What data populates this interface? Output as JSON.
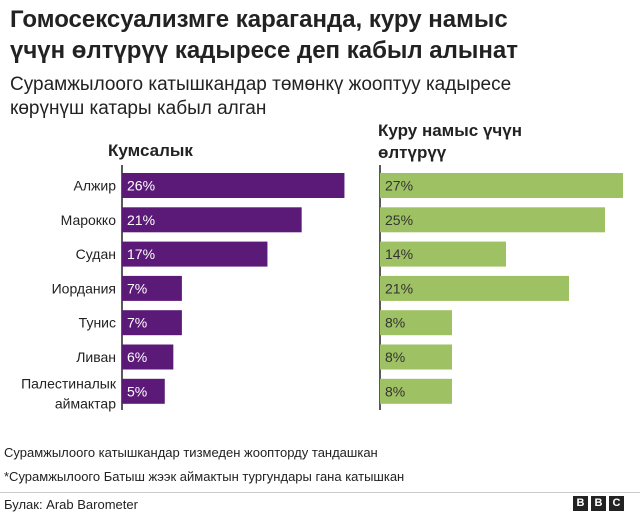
{
  "header": {
    "title_line1": "Гомосексуализмге караганда, куру намыс",
    "title_line2": "үчүн өлтүрүү кадыресе деп кабыл алынат",
    "subtitle_line1": "Сурамжылоого катышкандар төмөнкү жооптуу кадыресе",
    "subtitle_line2": "көрүнүш катары кабыл алган"
  },
  "chart_data": {
    "type": "bar",
    "orientation": "horizontal",
    "categories": [
      "Алжир",
      "Марокко",
      "Судан",
      "Иордания",
      "Тунис",
      "Ливан",
      "Палестиналык аймактар"
    ],
    "series": [
      {
        "name": "Кумсалык",
        "values": [
          26,
          21,
          17,
          7,
          7,
          6,
          5
        ],
        "color": "#5c1a78"
      },
      {
        "name": "Куру намыс үчүн өлтүрүү",
        "values": [
          27,
          25,
          14,
          21,
          8,
          8,
          8
        ],
        "color": "#9ec163"
      }
    ],
    "value_suffix": "%",
    "xlim": [
      0,
      27
    ]
  },
  "panels": {
    "left_title": "Кумсалык",
    "right_title_line1": "Куру намыс үчүн",
    "right_title_line2": "өлтүрүү"
  },
  "category_lines": {
    "palestine_line1": "Палестиналык",
    "palestine_line2": "аймактар"
  },
  "footnotes": {
    "note1": "Сурамжылоого катышкандар тизмеден жоопторду тандашкан",
    "note2": "*Сурамжылоого Батыш жээк аймактын тургундары гана катышкан"
  },
  "footer": {
    "source": "Булак: Arab Barometer",
    "logo_letters": [
      "B",
      "B",
      "C"
    ]
  }
}
